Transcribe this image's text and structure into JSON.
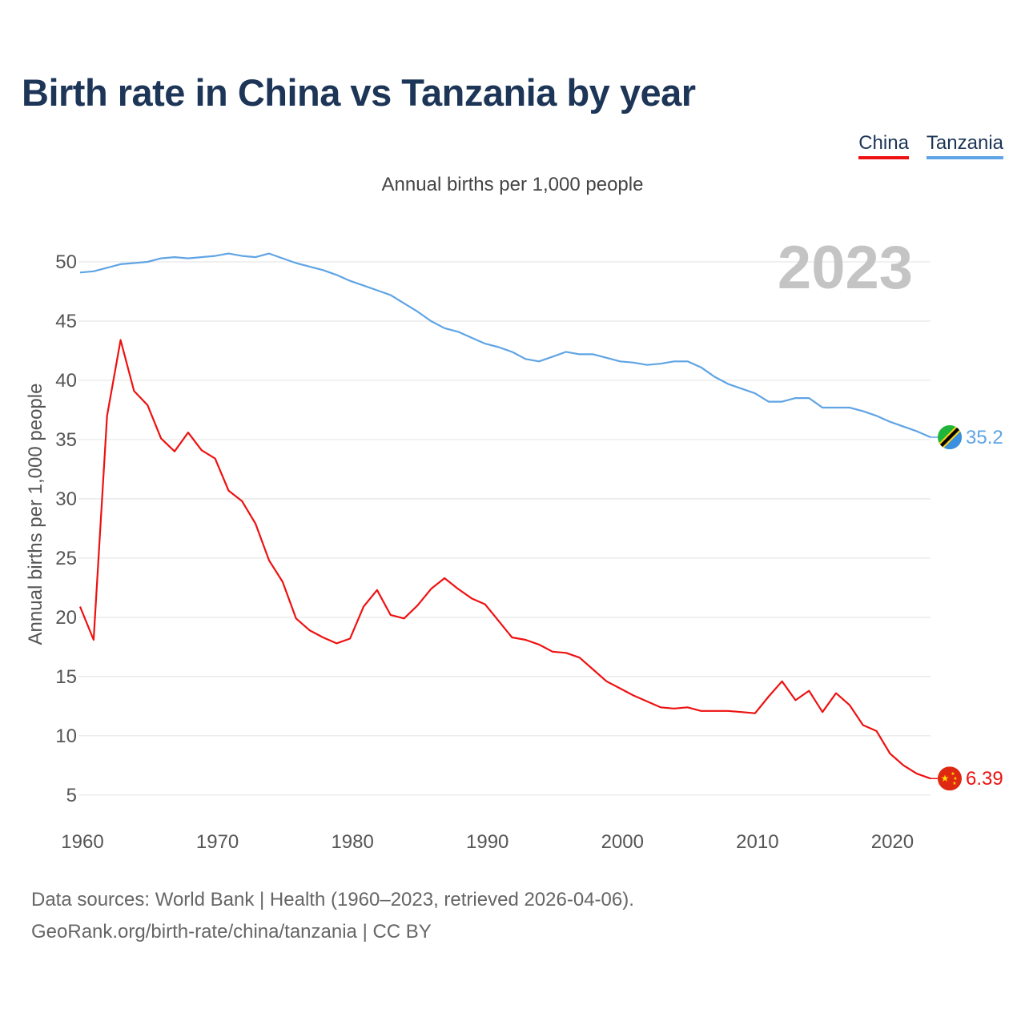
{
  "title": "Birth rate in China vs Tanzania by year",
  "subtitle": "Annual births per 1,000 people",
  "year_label": "2023",
  "legend": [
    {
      "label": "China",
      "color": "#ee1111"
    },
    {
      "label": "Tanzania",
      "color": "#5fa4e4"
    }
  ],
  "footer": {
    "line1": "Data sources: World Bank | Health (1960–2023, retrieved 2026-04-06).",
    "line2": "GeoRank.org/birth-rate/china/tanzania | CC BY"
  },
  "chart_data": {
    "type": "line",
    "title": "Birth rate in China vs Tanzania by year",
    "ylabel": "Annual births per 1,000 people",
    "xlabel": "",
    "xlim": [
      1960,
      2023
    ],
    "ylim": [
      3.5,
      52.5
    ],
    "x_ticks": [
      1960,
      1970,
      1980,
      1990,
      2000,
      2010,
      2020
    ],
    "y_ticks": [
      5,
      10,
      15,
      20,
      25,
      30,
      35,
      40,
      45,
      50
    ],
    "grid": true,
    "x": [
      1960,
      1961,
      1962,
      1963,
      1964,
      1965,
      1966,
      1967,
      1968,
      1969,
      1970,
      1971,
      1972,
      1973,
      1974,
      1975,
      1976,
      1977,
      1978,
      1979,
      1980,
      1981,
      1982,
      1983,
      1984,
      1985,
      1986,
      1987,
      1988,
      1989,
      1990,
      1991,
      1992,
      1993,
      1994,
      1995,
      1996,
      1997,
      1998,
      1999,
      2000,
      2001,
      2002,
      2003,
      2004,
      2005,
      2006,
      2007,
      2008,
      2009,
      2010,
      2011,
      2012,
      2013,
      2014,
      2015,
      2016,
      2017,
      2018,
      2019,
      2020,
      2021,
      2022,
      2023
    ],
    "series": [
      {
        "name": "China",
        "color": "#ee1111",
        "end_label": "6.39",
        "values": [
          20.9,
          18.1,
          37.0,
          43.4,
          39.1,
          37.9,
          35.1,
          34.0,
          35.6,
          34.1,
          33.4,
          30.7,
          29.8,
          27.9,
          24.8,
          23.0,
          19.9,
          18.9,
          18.3,
          17.8,
          18.2,
          20.9,
          22.3,
          20.2,
          19.9,
          21.0,
          22.4,
          23.3,
          22.4,
          21.6,
          21.1,
          19.7,
          18.3,
          18.1,
          17.7,
          17.1,
          17.0,
          16.6,
          15.6,
          14.6,
          14.0,
          13.4,
          12.9,
          12.4,
          12.3,
          12.4,
          12.1,
          12.1,
          12.1,
          12.0,
          11.9,
          13.3,
          14.6,
          13.0,
          13.8,
          12.0,
          13.6,
          12.6,
          10.9,
          10.4,
          8.5,
          7.5,
          6.8,
          6.39
        ]
      },
      {
        "name": "Tanzania",
        "color": "#5fa4e4",
        "end_label": "35.2",
        "values": [
          49.1,
          49.2,
          49.5,
          49.8,
          49.9,
          50.0,
          50.3,
          50.4,
          50.3,
          50.4,
          50.5,
          50.7,
          50.5,
          50.4,
          50.7,
          50.3,
          49.9,
          49.6,
          49.3,
          48.9,
          48.4,
          48.0,
          47.6,
          47.2,
          46.5,
          45.8,
          45.0,
          44.4,
          44.1,
          43.6,
          43.1,
          42.8,
          42.4,
          41.8,
          41.6,
          42.0,
          42.4,
          42.2,
          42.2,
          41.9,
          41.6,
          41.5,
          41.3,
          41.4,
          41.6,
          41.6,
          41.1,
          40.3,
          39.7,
          39.3,
          38.9,
          38.2,
          38.2,
          38.5,
          38.5,
          37.7,
          37.7,
          37.7,
          37.4,
          37.0,
          36.5,
          36.1,
          35.7,
          35.2
        ]
      }
    ]
  }
}
